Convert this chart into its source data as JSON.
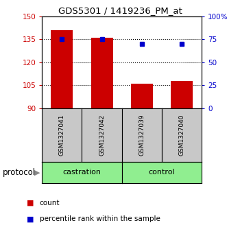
{
  "title": "GDS5301 / 1419236_PM_at",
  "samples": [
    "GSM1327041",
    "GSM1327042",
    "GSM1327039",
    "GSM1327040"
  ],
  "bar_values": [
    141,
    136,
    106,
    108
  ],
  "percentile_values": [
    75,
    75,
    70,
    70
  ],
  "bar_color": "#cc0000",
  "percentile_color": "#0000cc",
  "ylim_left": [
    90,
    150
  ],
  "ylim_right": [
    0,
    100
  ],
  "yticks_left": [
    90,
    105,
    120,
    135,
    150
  ],
  "yticks_right": [
    0,
    25,
    50,
    75,
    100
  ],
  "ytick_labels_right": [
    "0",
    "25",
    "50",
    "75",
    "100%"
  ],
  "group_labels": [
    "castration",
    "control"
  ],
  "group_color": "#90ee90",
  "label_box_color": "#c8c8c8",
  "protocol_label": "protocol",
  "legend_count_label": "count",
  "legend_percentile_label": "percentile rank within the sample",
  "bar_width": 0.55,
  "x_positions": [
    0,
    1,
    2,
    3
  ]
}
